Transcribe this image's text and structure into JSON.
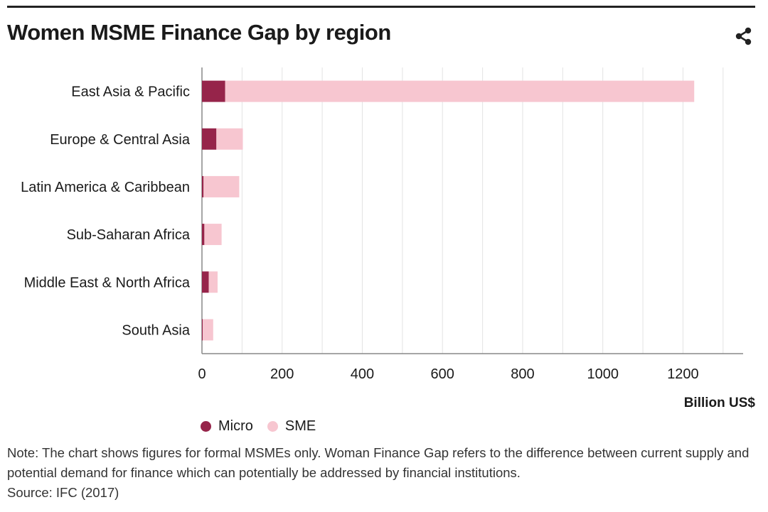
{
  "header": {
    "title": "Women MSME Finance Gap by region",
    "share_icon": "share-icon"
  },
  "colors": {
    "micro": "#96244a",
    "sme": "#f7c6d0",
    "grid": "#e3e3e3",
    "axis": "#888888",
    "text": "#1a1a1a"
  },
  "chart_data": {
    "type": "bar",
    "orientation": "horizontal",
    "stacked": true,
    "title": "Women MSME Finance Gap by region",
    "categories": [
      "East Asia & Pacific",
      "Europe & Central Asia",
      "Latin America & Caribbean",
      "Sub-Saharan Africa",
      "Middle East & North Africa",
      "South Asia"
    ],
    "series": [
      {
        "name": "Micro",
        "values": [
          58,
          36,
          4,
          6,
          17,
          2
        ]
      },
      {
        "name": "SME",
        "values": [
          1170,
          66,
          89,
          43,
          22,
          26
        ]
      }
    ],
    "xlabel": "Billion US$",
    "ylabel": "",
    "xlim": [
      0,
      1350
    ],
    "xticks": [
      0,
      200,
      400,
      600,
      800,
      1000,
      1200
    ],
    "grid": true,
    "legend_position": "bottom-left"
  },
  "footer": {
    "note": "Note: The chart shows figures for formal MSMEs only. Woman Finance Gap refers to the difference between current supply and potential demand for finance which can potentially be addressed by financial institutions.",
    "source": "Source: IFC (2017)"
  }
}
